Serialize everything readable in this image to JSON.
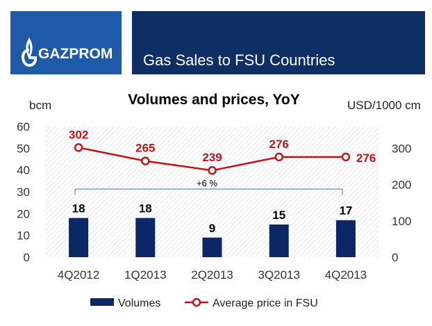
{
  "header": {
    "logo_text": "GAZPROM",
    "title": "Gas Sales to FSU Countries"
  },
  "colors": {
    "logo_blue": "#1e5aa8",
    "title_navy": "#0d2f63",
    "bar": "#0d2666",
    "line": "#c0141c",
    "label_red": "#c0141c",
    "bracket": "#3b73b9"
  },
  "chart_data": {
    "type": "bar+line",
    "title": "Volumes and prices, YoY",
    "ylabel_left": "bcm",
    "ylabel_right": "USD/1000 cm",
    "categories": [
      "4Q2012",
      "1Q2013",
      "2Q2013",
      "3Q2013",
      "4Q2013"
    ],
    "ylim_left": [
      0,
      60
    ],
    "yticks_left": [
      "0",
      "10",
      "20",
      "30",
      "40",
      "50",
      "60"
    ],
    "ylim_right": [
      0,
      360
    ],
    "yticks_right": [
      "0",
      "100",
      "200",
      "300"
    ],
    "series": [
      {
        "name": "Volumes",
        "type": "bar",
        "axis": "left",
        "values": [
          18,
          18,
          9,
          15,
          17
        ],
        "labels": [
          "18",
          "18",
          "9",
          "15",
          "17"
        ]
      },
      {
        "name": "Average price in FSU",
        "type": "line",
        "axis": "right",
        "values": [
          302,
          265,
          239,
          276,
          276
        ],
        "labels": [
          "302",
          "265",
          "239",
          "276",
          "276"
        ]
      }
    ],
    "annotation": "+6 %",
    "legend_position": "bottom",
    "grid": false
  }
}
